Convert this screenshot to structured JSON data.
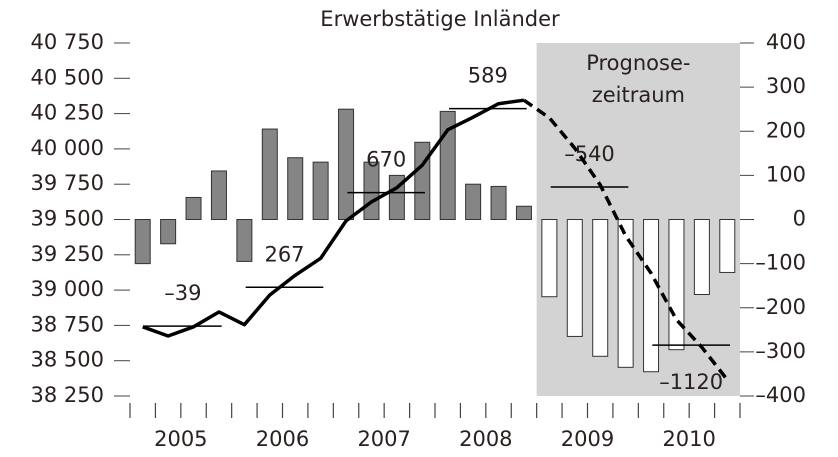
{
  "chart_data": {
    "type": "combo",
    "title": "Erwerbstätige Inländer",
    "years": [
      "2005",
      "2006",
      "2007",
      "2008",
      "2009",
      "2010"
    ],
    "series": [
      {
        "type": "bar",
        "axis": "y2",
        "color": "#858585",
        "values": [
          -100,
          -55,
          50,
          110,
          -95,
          205,
          140,
          130,
          250,
          130,
          100,
          175,
          245,
          80,
          75,
          30,
          null,
          null,
          null,
          null,
          null,
          null,
          null,
          null
        ]
      },
      {
        "type": "bar",
        "axis": "y2",
        "color": "#ffffff",
        "values": [
          null,
          null,
          null,
          null,
          null,
          null,
          null,
          null,
          null,
          null,
          null,
          null,
          null,
          null,
          null,
          null,
          -175,
          -265,
          -310,
          -335,
          -345,
          -295,
          -170,
          -120
        ]
      },
      {
        "type": "line",
        "axis": "y",
        "color": "#000000",
        "style": "solid",
        "values": [
          38740,
          38675,
          38740,
          38845,
          38755,
          38965,
          39105,
          39225,
          39490,
          39625,
          39725,
          39885,
          40135,
          40225,
          40320,
          40345,
          null,
          null,
          null,
          null,
          null,
          null,
          null,
          null
        ]
      },
      {
        "type": "line",
        "axis": "y",
        "color": "#000000",
        "style": "dashed",
        "values": [
          null,
          null,
          null,
          null,
          null,
          null,
          null,
          null,
          null,
          null,
          null,
          null,
          null,
          null,
          null,
          40345,
          40220,
          40005,
          39745,
          39385,
          39120,
          38790,
          38595,
          38365
        ]
      }
    ],
    "annual": [
      {
        "level": 38745,
        "change": {
          "value": -39,
          "label": "–39"
        }
      },
      {
        "level": 39020,
        "change": 267
      },
      {
        "level": 39690,
        "change": 670
      },
      {
        "level": 40285,
        "change": 589
      },
      {
        "level": 39730,
        "change": {
          "value": -540,
          "label": "–540"
        }
      },
      {
        "level": 38610,
        "change": {
          "value": -1120,
          "label": "–1120"
        }
      }
    ],
    "forecast_label": [
      "Prognose-",
      "zeitraum"
    ],
    "forecast_shade": "#d3d3d3",
    "ylim": [
      38250,
      40750
    ],
    "yticks": [
      {
        "value": 38250,
        "label": "38 250"
      },
      {
        "value": 38500,
        "label": "38 500"
      },
      {
        "value": 38750,
        "label": "38 750"
      },
      {
        "value": 39000,
        "label": "39 000"
      },
      {
        "value": 39250,
        "label": "39 250"
      },
      {
        "value": 39500,
        "label": "39 500"
      },
      {
        "value": 39750,
        "label": "39 750"
      },
      {
        "value": 40000,
        "label": "40 000"
      },
      {
        "value": 40250,
        "label": "40 250"
      },
      {
        "value": 40500,
        "label": "40 500"
      },
      {
        "value": 40750,
        "label": "40 750"
      }
    ],
    "y2lim": [
      -400,
      400
    ],
    "y2ticks": [
      {
        "value": -400,
        "label": "–400"
      },
      {
        "value": -300,
        "label": "–300"
      },
      {
        "value": -200,
        "label": "–200"
      },
      {
        "value": -100,
        "label": "–100"
      },
      0,
      100,
      200,
      300,
      400
    ]
  }
}
